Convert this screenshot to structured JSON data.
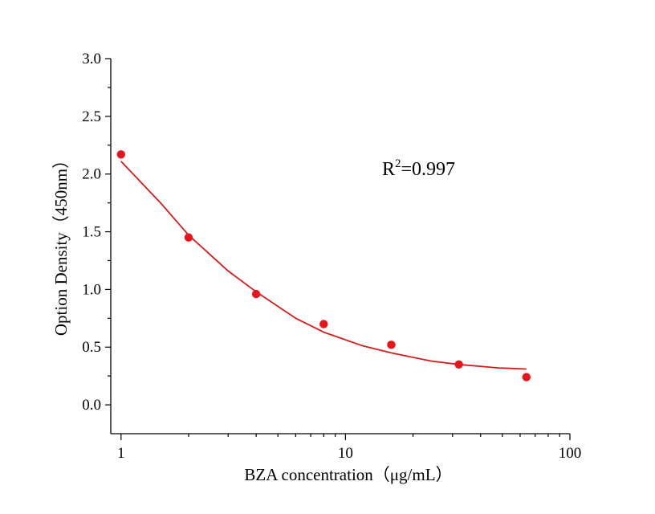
{
  "chart_data": {
    "type": "scatter",
    "title": "",
    "xlabel": "BZA concentration（μg/mL）",
    "ylabel": "Option Density（450nm）",
    "xscale": "log",
    "xlim": [
      0.9,
      100
    ],
    "ylim": [
      -0.25,
      3.0
    ],
    "grid": false,
    "x_tick_labels": [
      "1",
      "10",
      "100"
    ],
    "y_tick_labels": [
      "0.0",
      "0.5",
      "1.0",
      "1.5",
      "2.0",
      "2.5",
      "3.0"
    ],
    "annotation": {
      "base": "R",
      "superscript": "2",
      "rest": "=0.997"
    },
    "series": [
      {
        "type": "scatter",
        "color": "#e8141c",
        "x": [
          1,
          2,
          4,
          8,
          16,
          32,
          64
        ],
        "y": [
          2.17,
          1.45,
          0.96,
          0.7,
          0.52,
          0.35,
          0.24
        ]
      },
      {
        "type": "line",
        "color": "#d91a1a",
        "fit": "four-parameter logistic",
        "x": [
          1,
          1.5,
          2,
          3,
          4,
          6,
          8,
          12,
          16,
          24,
          32,
          48,
          64
        ],
        "y": [
          2.11,
          1.75,
          1.47,
          1.16,
          0.98,
          0.75,
          0.63,
          0.51,
          0.45,
          0.38,
          0.35,
          0.32,
          0.31
        ]
      }
    ]
  }
}
